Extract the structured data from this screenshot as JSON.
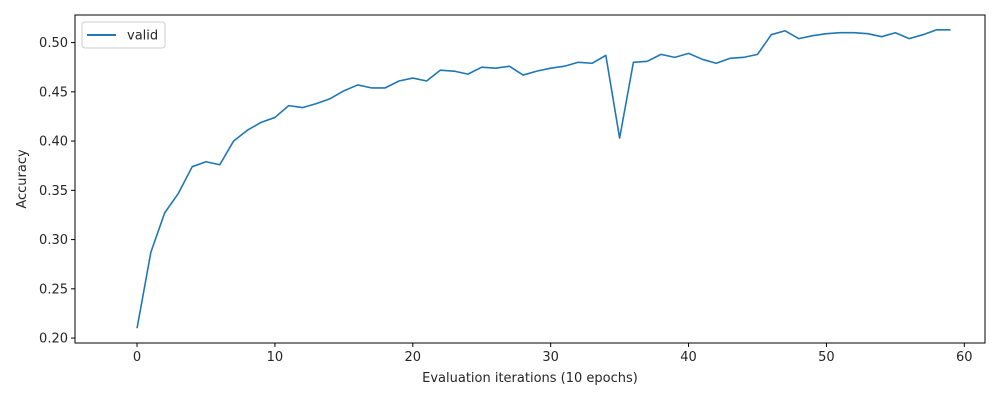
{
  "chart_data": {
    "type": "line",
    "title": "",
    "xlabel": "Evaluation iterations (10 epochs)",
    "ylabel": "Accuracy",
    "xlim": [
      -4.5,
      61.5
    ],
    "ylim": [
      0.195,
      0.528
    ],
    "xticks": [
      0,
      10,
      20,
      30,
      40,
      50,
      60
    ],
    "yticks": [
      0.2,
      0.25,
      0.3,
      0.35,
      0.4,
      0.45,
      0.5
    ],
    "grid": false,
    "legend_position": "top-left",
    "series": [
      {
        "name": "valid",
        "color": "#1f77b4",
        "x": [
          0,
          1,
          2,
          3,
          4,
          5,
          6,
          7,
          8,
          9,
          10,
          11,
          12,
          13,
          14,
          15,
          16,
          17,
          18,
          19,
          20,
          21,
          22,
          23,
          24,
          25,
          26,
          27,
          28,
          29,
          30,
          31,
          32,
          33,
          34,
          35,
          36,
          37,
          38,
          39,
          40,
          41,
          42,
          43,
          44,
          45,
          46,
          47,
          48,
          49,
          50,
          51,
          52,
          53,
          54,
          55,
          56,
          57,
          58,
          59
        ],
        "y": [
          0.21,
          0.287,
          0.327,
          0.347,
          0.374,
          0.379,
          0.376,
          0.4,
          0.411,
          0.419,
          0.424,
          0.436,
          0.434,
          0.438,
          0.443,
          0.451,
          0.457,
          0.454,
          0.454,
          0.461,
          0.464,
          0.461,
          0.472,
          0.471,
          0.468,
          0.475,
          0.474,
          0.476,
          0.467,
          0.471,
          0.474,
          0.476,
          0.48,
          0.479,
          0.487,
          0.403,
          0.48,
          0.481,
          0.488,
          0.485,
          0.489,
          0.483,
          0.479,
          0.484,
          0.485,
          0.488,
          0.508,
          0.512,
          0.504,
          0.507,
          0.509,
          0.51,
          0.51,
          0.509,
          0.506,
          0.51,
          0.504,
          0.508,
          0.513,
          0.513
        ]
      }
    ]
  }
}
